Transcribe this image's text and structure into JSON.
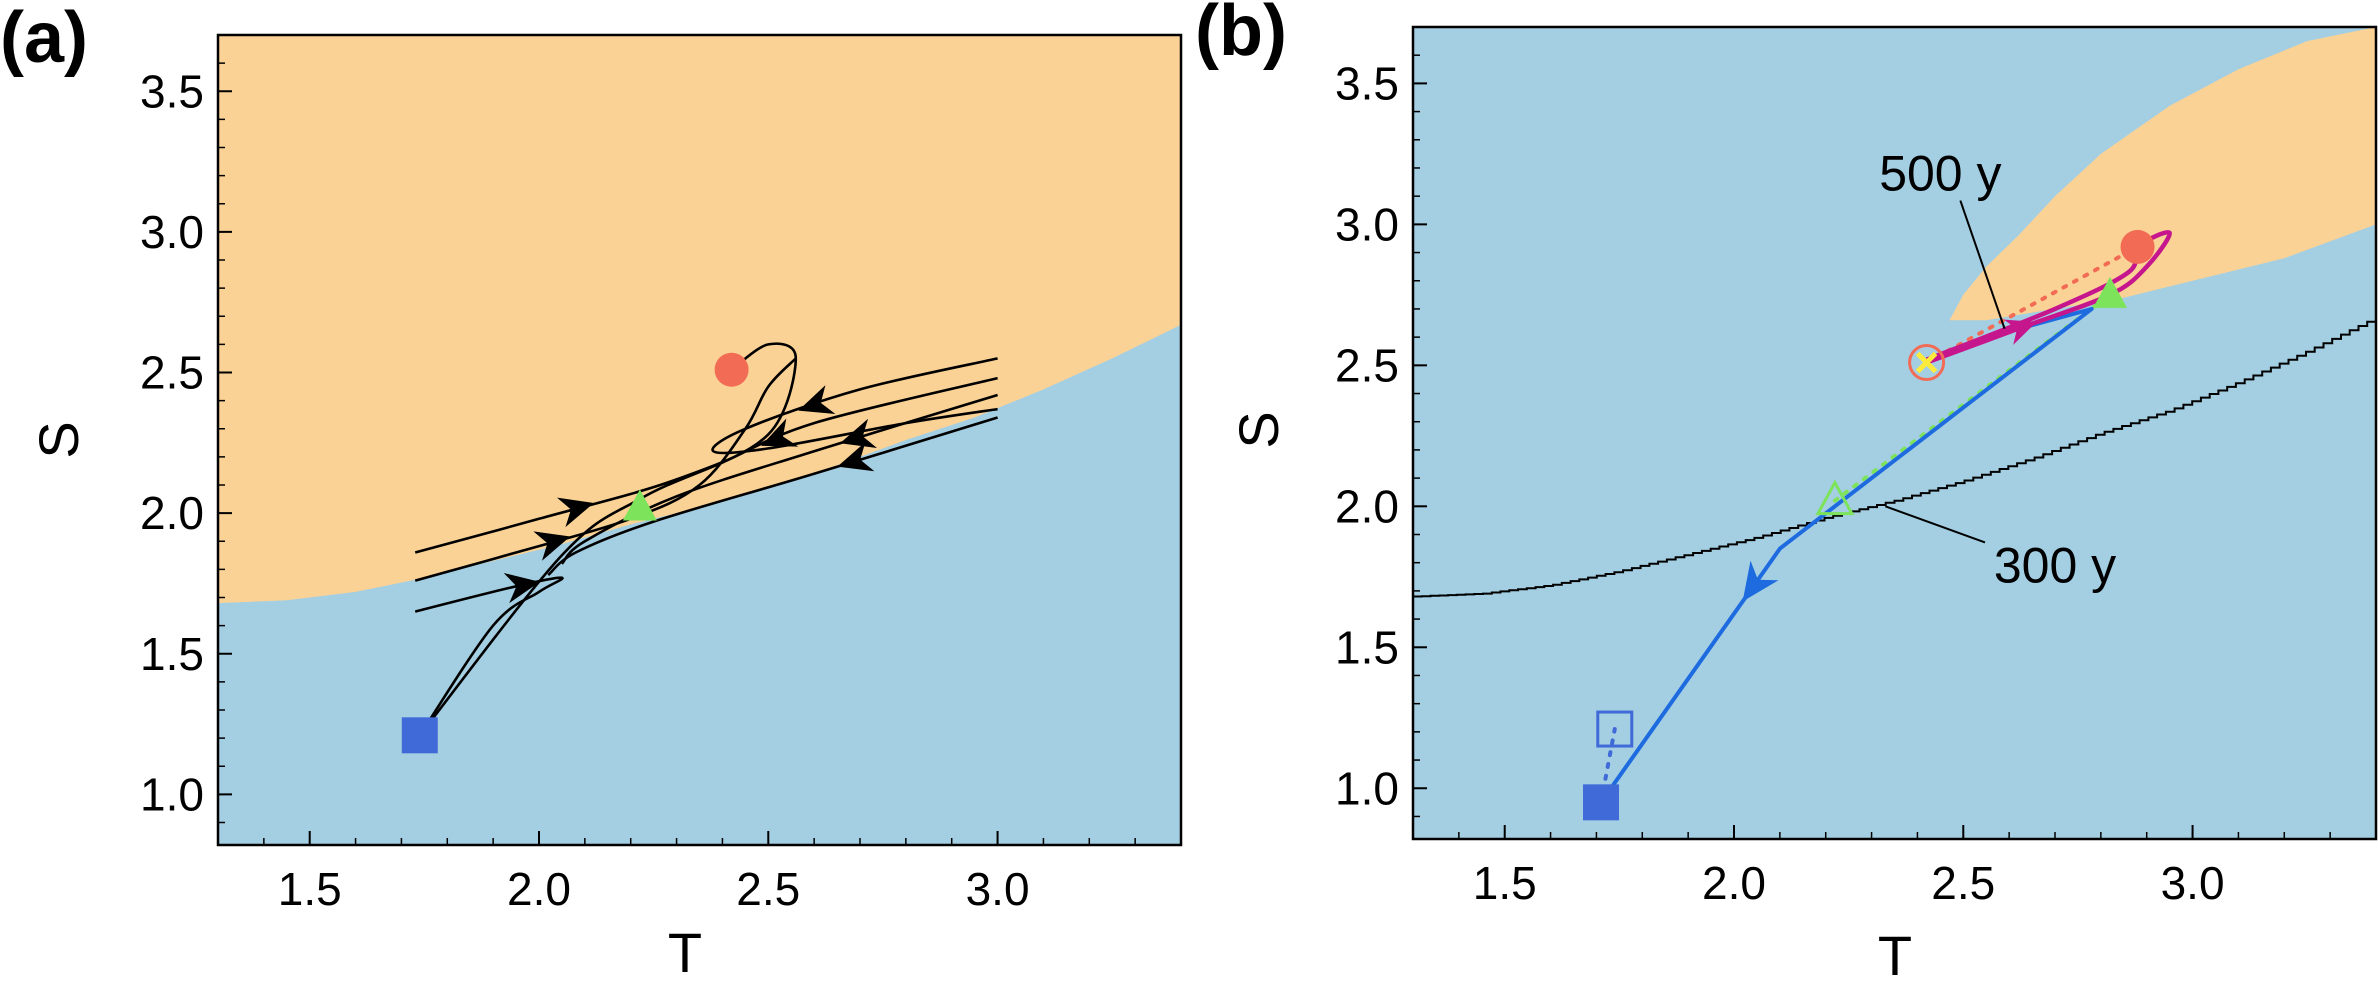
{
  "colors": {
    "orange_region": "#FBD295",
    "blue_region": "#A4CFE3",
    "red_marker": "#F26B55",
    "blue_marker": "#3F6AD8",
    "green_marker": "#7CE35A",
    "trajectory_300y": "#1E6BE0",
    "trajectory_500y": "#C6168D",
    "trajectory_500y_dotted": "#F26B55",
    "yellow_x": "#FFEB3B"
  },
  "chart_data": [
    {
      "panel_label": "(a)",
      "type": "line",
      "xlabel": "T",
      "ylabel": "S",
      "xlim": [
        1.3,
        3.4
      ],
      "ylim": [
        0.82,
        3.7
      ],
      "xticks": [
        "1.5",
        "2.0",
        "2.5",
        "3.0"
      ],
      "yticks": [
        "1.0",
        "1.5",
        "2.0",
        "2.5",
        "3.0",
        "3.5"
      ],
      "grid": false,
      "boundary": [
        [
          1.3,
          1.68
        ],
        [
          1.45,
          1.69
        ],
        [
          1.6,
          1.72
        ],
        [
          1.75,
          1.77
        ],
        [
          1.9,
          1.83
        ],
        [
          2.05,
          1.89
        ],
        [
          2.2,
          1.96
        ],
        [
          2.35,
          2.02
        ],
        [
          2.5,
          2.09
        ],
        [
          2.65,
          2.17
        ],
        [
          2.8,
          2.26
        ],
        [
          2.95,
          2.34
        ],
        [
          3.1,
          2.44
        ],
        [
          3.25,
          2.55
        ],
        [
          3.4,
          2.67
        ]
      ],
      "region_above": "orange",
      "region_below": "blue",
      "points": [
        {
          "name": "red-circle",
          "x": 2.42,
          "y": 2.51
        },
        {
          "name": "green-triangle",
          "x": 2.22,
          "y": 2.02
        },
        {
          "name": "blue-square",
          "x": 1.74,
          "y": 1.21
        }
      ],
      "streamlines": [
        [
          [
            1.73,
            1.86
          ],
          [
            2.0,
            1.98
          ],
          [
            2.3,
            2.12
          ],
          [
            2.5,
            2.28
          ],
          [
            2.56,
            2.55
          ],
          [
            2.5,
            2.6
          ],
          [
            2.42,
            2.51
          ]
        ],
        [
          [
            1.73,
            1.76
          ],
          [
            1.95,
            1.86
          ],
          [
            2.2,
            1.98
          ],
          [
            2.35,
            2.1
          ],
          [
            2.45,
            2.3
          ],
          [
            2.5,
            2.45
          ],
          [
            2.56,
            2.55
          ]
        ],
        [
          [
            1.73,
            1.65
          ],
          [
            1.95,
            1.74
          ],
          [
            2.05,
            1.77
          ],
          [
            2.0,
            1.72
          ],
          [
            1.9,
            1.6
          ],
          [
            1.74,
            1.21
          ]
        ],
        [
          [
            3.0,
            2.55
          ],
          [
            2.7,
            2.44
          ],
          [
            2.45,
            2.3
          ],
          [
            2.38,
            2.22
          ],
          [
            2.5,
            2.23
          ],
          [
            2.8,
            2.32
          ],
          [
            3.0,
            2.37
          ]
        ],
        [
          [
            3.0,
            2.48
          ],
          [
            2.6,
            2.32
          ],
          [
            2.4,
            2.18
          ],
          [
            2.22,
            2.05
          ],
          [
            2.05,
            1.85
          ],
          [
            1.74,
            1.21
          ]
        ],
        [
          [
            3.0,
            2.42
          ],
          [
            2.6,
            2.22
          ],
          [
            2.3,
            2.06
          ],
          [
            2.1,
            1.9
          ],
          [
            2.05,
            1.82
          ]
        ],
        [
          [
            3.0,
            2.34
          ],
          [
            2.6,
            2.14
          ],
          [
            2.25,
            1.97
          ],
          [
            2.08,
            1.86
          ],
          [
            2.02,
            1.78
          ]
        ]
      ]
    },
    {
      "panel_label": "(b)",
      "type": "line",
      "xlabel": "T",
      "ylabel": "S",
      "xlim": [
        1.3,
        3.4
      ],
      "ylim": [
        0.82,
        3.7
      ],
      "xticks": [
        "1.5",
        "2.0",
        "2.5",
        "3.0"
      ],
      "yticks": [
        "1.0",
        "1.5",
        "2.0",
        "2.5",
        "3.0",
        "3.5"
      ],
      "grid": false,
      "region_above": "blue",
      "region_inside": "orange",
      "orange_tongue": [
        [
          2.47,
          2.66
        ],
        [
          2.5,
          2.75
        ],
        [
          2.55,
          2.85
        ],
        [
          2.62,
          2.96
        ],
        [
          2.7,
          3.1
        ],
        [
          2.8,
          3.25
        ],
        [
          2.95,
          3.42
        ],
        [
          3.1,
          3.55
        ],
        [
          3.25,
          3.65
        ],
        [
          3.4,
          3.7
        ],
        [
          3.4,
          3.0
        ],
        [
          3.2,
          2.88
        ],
        [
          3.0,
          2.8
        ],
        [
          2.85,
          2.74
        ],
        [
          2.7,
          2.7
        ],
        [
          2.55,
          2.66
        ],
        [
          2.47,
          2.66
        ]
      ],
      "threshold_line": [
        [
          1.3,
          1.68
        ],
        [
          1.45,
          1.69
        ],
        [
          1.6,
          1.72
        ],
        [
          1.75,
          1.77
        ],
        [
          1.9,
          1.83
        ],
        [
          2.05,
          1.89
        ],
        [
          2.2,
          1.96
        ],
        [
          2.35,
          2.02
        ],
        [
          2.5,
          2.09
        ],
        [
          2.65,
          2.17
        ],
        [
          2.8,
          2.26
        ],
        [
          2.95,
          2.34
        ],
        [
          3.1,
          2.44
        ],
        [
          3.25,
          2.55
        ],
        [
          3.4,
          2.67
        ]
      ],
      "series": [
        {
          "name": "300 y",
          "points": [
            [
              2.42,
              2.51
            ],
            [
              2.6,
              2.62
            ],
            [
              2.78,
              2.7
            ],
            [
              2.5,
              2.35
            ],
            [
              2.1,
              1.85
            ],
            [
              1.71,
              0.95
            ]
          ]
        },
        {
          "name": "500 y",
          "points": [
            [
              2.42,
              2.51
            ],
            [
              2.62,
              2.63
            ],
            [
              2.82,
              2.75
            ],
            [
              2.9,
              2.85
            ],
            [
              2.95,
              2.97
            ],
            [
              2.88,
              2.92
            ],
            [
              2.86,
              2.83
            ],
            [
              2.7,
              2.7
            ],
            [
              2.42,
              2.52
            ]
          ]
        }
      ],
      "dotted_links": [
        {
          "from": [
            2.42,
            2.51
          ],
          "to": [
            2.88,
            2.92
          ],
          "color": "red"
        },
        {
          "from": [
            2.22,
            2.02
          ],
          "to": [
            2.82,
            2.75
          ],
          "color": "green"
        },
        {
          "from": [
            1.71,
            0.95
          ],
          "to": [
            1.74,
            1.21
          ],
          "color": "blue"
        }
      ],
      "points": [
        {
          "name": "red-circle",
          "x": 2.88,
          "y": 2.92,
          "filled": true
        },
        {
          "name": "red-circle-open",
          "x": 2.42,
          "y": 2.51,
          "filled": false
        },
        {
          "name": "yellow-x",
          "x": 2.42,
          "y": 2.51
        },
        {
          "name": "green-triangle",
          "x": 2.82,
          "y": 2.75,
          "filled": true
        },
        {
          "name": "green-triangle-open",
          "x": 2.22,
          "y": 2.02,
          "filled": false
        },
        {
          "name": "blue-square",
          "x": 1.71,
          "y": 0.95,
          "filled": true
        },
        {
          "name": "blue-square-open",
          "x": 1.74,
          "y": 1.21,
          "filled": false
        }
      ],
      "annotations": [
        {
          "text": "500 y",
          "x": 2.45,
          "y": 3.12,
          "pointer_to": [
            2.59,
            2.63
          ]
        },
        {
          "text": "300 y",
          "x": 2.7,
          "y": 1.73,
          "pointer_to": [
            2.33,
            2.0
          ]
        }
      ]
    }
  ]
}
